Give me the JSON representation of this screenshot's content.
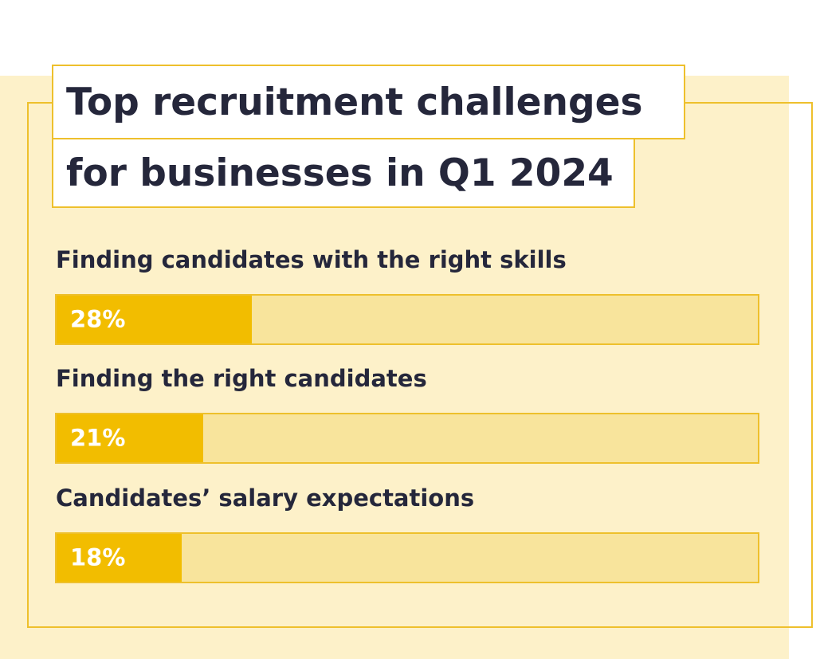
{
  "chart_data": {
    "type": "bar",
    "orientation": "horizontal",
    "title": "Top recruitment challenges for businesses in Q1 2024",
    "title_lines": [
      "Top recruitment challenges",
      "for businesses in Q1 2024"
    ],
    "categories": [
      "Finding candidates with the right skills",
      "Finding the right candidates",
      "Candidates’ salary expectations"
    ],
    "values": [
      28,
      21,
      18
    ],
    "value_labels": [
      "28%",
      "21%",
      "18%"
    ],
    "unit": "%",
    "xlim": [
      0,
      100
    ],
    "grid": false,
    "legend": "none",
    "colors": {
      "panel_background": "#fdf1c9",
      "frame": "#eec02c",
      "track": "#f8e49c",
      "fill": "#f2bd00",
      "text_dark": "#25273b",
      "value_text": "#ffffff"
    }
  }
}
